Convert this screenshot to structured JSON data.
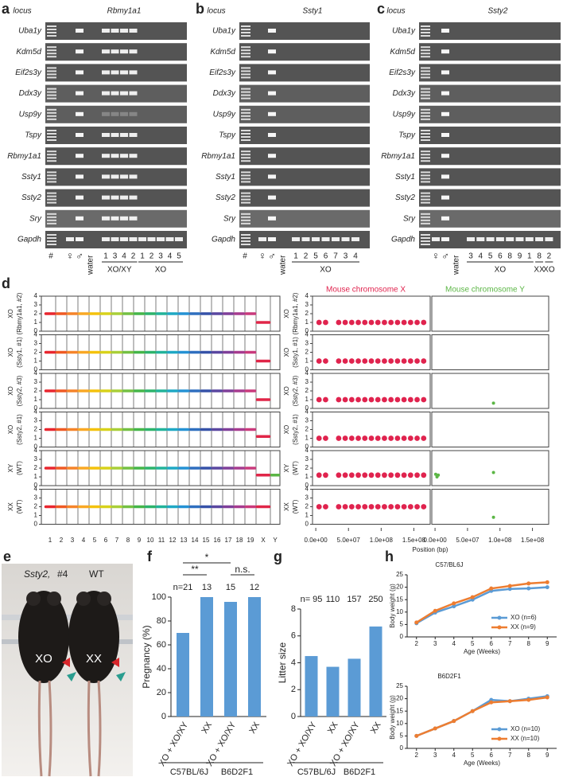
{
  "loci": [
    "Uba1y",
    "Kdm5d",
    "Eif2s3y",
    "Ddx3y",
    "Usp9y",
    "Tspy",
    "Rbmy1a1",
    "Ssty1",
    "Ssty2",
    "Sry",
    "Gapdh"
  ],
  "panels": {
    "a": {
      "letter": "a",
      "locus_header": "locus",
      "gene": "Rbmy1a1",
      "lanes": [
        "#",
        "♀",
        "♂",
        "water",
        "1",
        "3",
        "4",
        "2",
        "1",
        "2",
        "3",
        "4",
        "5"
      ],
      "groups": [
        "XO/XY",
        "XO"
      ]
    },
    "b": {
      "letter": "b",
      "locus_header": "locus",
      "gene": "Ssty1",
      "lanes": [
        "#",
        "♀",
        "♂",
        "water",
        "1",
        "2",
        "5",
        "6",
        "7",
        "3",
        "4"
      ],
      "groups": [
        "XO"
      ]
    },
    "c": {
      "letter": "c",
      "locus_header": "locus",
      "gene": "Ssty2",
      "lanes": [
        "♀",
        "♂",
        "water",
        "3",
        "4",
        "5",
        "6",
        "8",
        "9",
        "1",
        "8",
        "2"
      ],
      "groups": [
        "XO",
        "XX",
        "XO"
      ]
    }
  },
  "photo": {
    "letter": "e",
    "gene": "Ssty2,",
    "id": "#4",
    "wt": "WT",
    "left": "XO",
    "right": "XX"
  },
  "chart_data": [
    {
      "type": "copy-number",
      "panel": "d",
      "categories": [
        "1",
        "2",
        "3",
        "4",
        "5",
        "6",
        "7",
        "8",
        "9",
        "10",
        "11",
        "12",
        "13",
        "14",
        "15",
        "16",
        "17",
        "18",
        "19",
        "X",
        "Y"
      ],
      "colors": [
        "#e8262f",
        "#ef5a24",
        "#f5842a",
        "#f9a825",
        "#f4c20d",
        "#d8d21b",
        "#a9cf38",
        "#74c043",
        "#45b649",
        "#2db36b",
        "#22b39a",
        "#1fa8c4",
        "#2592d4",
        "#2f6fbf",
        "#3652a8",
        "#5a47a0",
        "#7f3f99",
        "#a63b8f",
        "#c93a7c",
        "#e02648",
        "#5bb645"
      ],
      "ylim": [
        0,
        4
      ],
      "yticks": [
        0,
        1,
        2,
        3,
        4
      ],
      "series": [
        {
          "name": "XO",
          "sample": "(Rbmy1a1, #2)",
          "values": [
            2,
            2,
            2,
            2,
            2,
            2,
            2,
            2,
            2,
            2,
            2,
            2,
            2,
            2,
            2,
            2,
            2,
            2,
            2,
            1,
            null
          ]
        },
        {
          "name": "XO",
          "sample": "(Ssty1, #1)",
          "values": [
            2,
            2,
            2,
            2,
            2,
            2,
            2,
            2,
            2,
            2,
            2,
            2,
            2,
            2,
            2,
            2,
            2,
            2,
            2,
            1,
            null
          ]
        },
        {
          "name": "XO",
          "sample": "(Ssty2, #3)",
          "values": [
            2,
            2,
            2,
            2,
            2,
            2,
            2,
            2,
            2,
            2,
            2,
            2,
            2,
            2,
            2,
            2,
            2,
            2,
            2,
            1,
            null
          ]
        },
        {
          "name": "XO",
          "sample": "(Ssty2, #1)",
          "values": [
            2,
            2,
            2,
            2,
            2,
            2,
            2,
            2,
            2,
            2,
            2,
            2,
            2,
            2,
            2,
            2,
            2,
            2,
            2,
            1.2,
            null
          ]
        },
        {
          "name": "XY",
          "sample": "(WT)",
          "values": [
            2,
            2,
            2,
            2,
            2,
            2,
            2,
            2,
            2,
            2,
            2,
            2,
            2,
            2,
            2,
            2,
            2,
            2,
            2,
            1.2,
            1.2
          ]
        },
        {
          "name": "XX",
          "sample": "(WT)",
          "values": [
            2,
            2,
            2,
            2,
            2,
            2,
            2,
            2,
            2,
            2,
            2,
            2,
            2,
            2,
            2,
            2,
            2,
            2,
            2,
            2,
            null
          ]
        }
      ]
    },
    {
      "type": "position",
      "panel": "d",
      "title_x": "Mouse chromosome X",
      "title_y": "Mouse chromosome Y",
      "color_x": "#e0234e",
      "color_y": "#5bb645",
      "xlabel": "Position (bp)",
      "x": [
        5000000,
        15000000,
        35000000,
        45000000,
        55000000,
        65000000,
        75000000,
        85000000,
        95000000,
        105000000,
        115000000,
        125000000,
        135000000,
        145000000,
        155000000,
        165000000
      ],
      "xlim": [
        -5000000,
        175000000
      ],
      "xticks": [
        {
          "value": 0,
          "label": "0.0e+00"
        },
        {
          "value": 50000000,
          "label": "5.0e+07"
        },
        {
          "value": 100000000,
          "label": "1.0e+08"
        },
        {
          "value": 150000000,
          "label": "1.5e+08"
        }
      ],
      "ylim": [
        0,
        4
      ],
      "yticks": [
        0,
        1,
        2,
        3,
        4
      ],
      "series": [
        {
          "values": [
            1,
            1,
            1,
            1,
            1,
            1,
            1,
            1,
            1,
            1,
            1,
            1,
            1,
            1,
            1,
            1
          ]
        },
        {
          "values": [
            1,
            1,
            1,
            1,
            1,
            1,
            1,
            1,
            1,
            1,
            1,
            1,
            1,
            1,
            1,
            1
          ]
        },
        {
          "values": [
            1,
            1,
            1,
            1,
            1,
            1,
            1,
            1,
            1,
            1,
            1,
            1,
            1,
            1,
            1,
            1
          ],
          "y_x": [
            90000000
          ],
          "y_values": [
            0.6
          ]
        },
        {
          "values": [
            1,
            1,
            1,
            1,
            1,
            1,
            1,
            1,
            1,
            1,
            1,
            1,
            1,
            1,
            1,
            1
          ]
        },
        {
          "values": [
            1.2,
            1.2,
            1.2,
            1.2,
            1.2,
            1.2,
            1.2,
            1.2,
            1.2,
            1.2,
            1.2,
            1.2,
            1.2,
            1.2,
            1.2,
            1.2
          ],
          "y_x": [
            1000000,
            3000000,
            5000000,
            90000000
          ],
          "y_values": [
            1.3,
            1,
            1.2,
            1.5
          ]
        },
        {
          "values": [
            2,
            2,
            2,
            2,
            2,
            2,
            2,
            2,
            2,
            2,
            2,
            2,
            2,
            2,
            2,
            2
          ],
          "y_x": [
            90000000
          ],
          "y_values": [
            0.8
          ]
        }
      ]
    },
    {
      "type": "bar",
      "panel": "f",
      "ylabel": "Pregnancy (%)",
      "categories": [
        "XO + XO/XY",
        "XX",
        "XO + XO/XY",
        "XX"
      ],
      "values": [
        70,
        100,
        96,
        100
      ],
      "color": "#5b9bd5",
      "ylim": [
        0,
        100
      ],
      "yticks": [
        0,
        20,
        40,
        60,
        80,
        100
      ],
      "n_labels": [
        "n=21",
        "13",
        "15",
        "12"
      ],
      "significance": [
        "*",
        "**",
        "n.s."
      ],
      "groups": [
        "C57BL/6J",
        "B6D2F1"
      ]
    },
    {
      "type": "bar",
      "panel": "g",
      "ylabel": "Litter size",
      "categories": [
        "XO + XO/XY",
        "XX",
        "XO + XO/XY",
        "XX"
      ],
      "values": [
        4.5,
        3.7,
        4.3,
        6.7
      ],
      "color": "#5b9bd5",
      "ylim": [
        0,
        8
      ],
      "yticks": [
        0,
        2,
        4,
        6,
        8
      ],
      "n_labels": [
        "n= 95",
        "110",
        "157",
        "250"
      ],
      "groups": [
        "C57BL/6J",
        "B6D2F1"
      ]
    },
    {
      "type": "line",
      "panel": "h",
      "title": "C57/BL6J",
      "xlabel": "Age (Weeks)",
      "ylabel": "Body weight (g)",
      "x": [
        2,
        3,
        4,
        5,
        6,
        7,
        8,
        9
      ],
      "xlim": [
        1.5,
        9.5
      ],
      "xticks": [
        2,
        3,
        4,
        5,
        6,
        7,
        8,
        9
      ],
      "ylim": [
        0,
        25
      ],
      "yticks": [
        0,
        5,
        10,
        15,
        20,
        25
      ],
      "series": [
        {
          "name": "XO (n=6)",
          "color": "#5b9bd5",
          "values": [
            5.5,
            9.8,
            12.3,
            15,
            18.5,
            19.3,
            19.5,
            20
          ]
        },
        {
          "name": "XX (n=9)",
          "color": "#ed7d31",
          "values": [
            5.8,
            10.5,
            13.5,
            16,
            19.5,
            20.5,
            21.5,
            22
          ]
        }
      ]
    },
    {
      "type": "line",
      "title": "B6D2F1",
      "xlabel": "Age (Weeks)",
      "ylabel": "Body weight (g)",
      "x": [
        2,
        3,
        4,
        5,
        6,
        7,
        8,
        9
      ],
      "xlim": [
        1.5,
        9.5
      ],
      "xticks": [
        2,
        3,
        4,
        5,
        6,
        7,
        8,
        9
      ],
      "ylim": [
        0,
        25
      ],
      "yticks": [
        0,
        5,
        10,
        15,
        20,
        25
      ],
      "series": [
        {
          "name": "XO (n=10)",
          "color": "#5b9bd5",
          "values": [
            5,
            8,
            11,
            15,
            19.5,
            19,
            20,
            21
          ]
        },
        {
          "name": "XX (n=10)",
          "color": "#ed7d31",
          "values": [
            5,
            8,
            11,
            15,
            18.5,
            19,
            19.5,
            20.5
          ]
        }
      ]
    }
  ]
}
